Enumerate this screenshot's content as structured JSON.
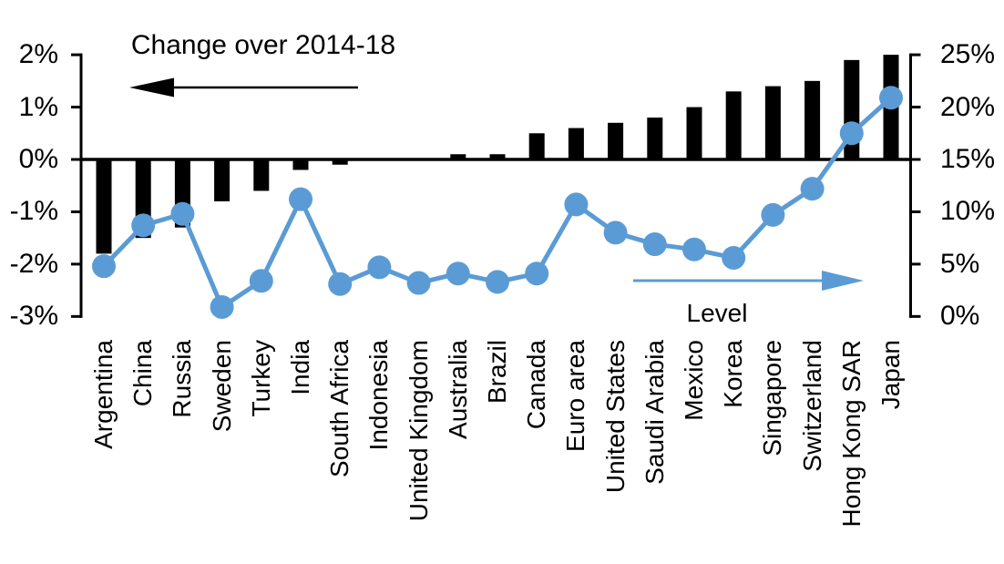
{
  "chart_data": {
    "type": "bar",
    "subtype": "combo-bar-line-dual-axis",
    "categories": [
      "Argentina",
      "China",
      "Russia",
      "Sweden",
      "Turkey",
      "India",
      "South Africa",
      "Indonesia",
      "United Kingdom",
      "Australia",
      "Brazil",
      "Canada",
      "Euro area",
      "United States",
      "Saudi Arabia",
      "Mexico",
      "Korea",
      "Singapore",
      "Switzerland",
      "Hong Kong SAR",
      "Japan"
    ],
    "series": [
      {
        "name": "Change over 2014-18",
        "type": "bar",
        "axis": "left",
        "color": "#000000",
        "values": [
          -1.8,
          -1.5,
          -1.3,
          -0.8,
          -0.6,
          -0.2,
          -0.1,
          0,
          0,
          0.1,
          0.1,
          0.5,
          0.6,
          0.7,
          0.8,
          1.0,
          1.3,
          1.4,
          1.5,
          1.9,
          2.0
        ]
      },
      {
        "name": "Level",
        "type": "line",
        "axis": "right",
        "color": "#5B9BD5",
        "values": [
          4.8,
          8.7,
          9.8,
          0.9,
          3.4,
          11.2,
          3.1,
          4.7,
          3.2,
          4.1,
          3.3,
          4.1,
          10.7,
          8.0,
          6.9,
          6.4,
          5.6,
          9.7,
          12.2,
          17.5,
          20.9
        ]
      }
    ],
    "left_axis": {
      "min": -3,
      "max": 2,
      "step": 1,
      "tick_labels": [
        "2%",
        "1%",
        "0%",
        "-1%",
        "-2%",
        "-3%"
      ]
    },
    "right_axis": {
      "min": 0,
      "max": 25,
      "step": 5,
      "tick_labels": [
        "25%",
        "20%",
        "15%",
        "10%",
        "5%",
        "0%"
      ]
    },
    "grid": false,
    "legend_position": "none"
  },
  "annotations": {
    "change_label": "Change over 2014-18",
    "level_label": "Level",
    "change_arrow_direction": "left",
    "level_arrow_direction": "right"
  },
  "colors": {
    "bar": "#000000",
    "line": "#5B9BD5",
    "axis": "#000000",
    "background": "#FFFFFF"
  }
}
